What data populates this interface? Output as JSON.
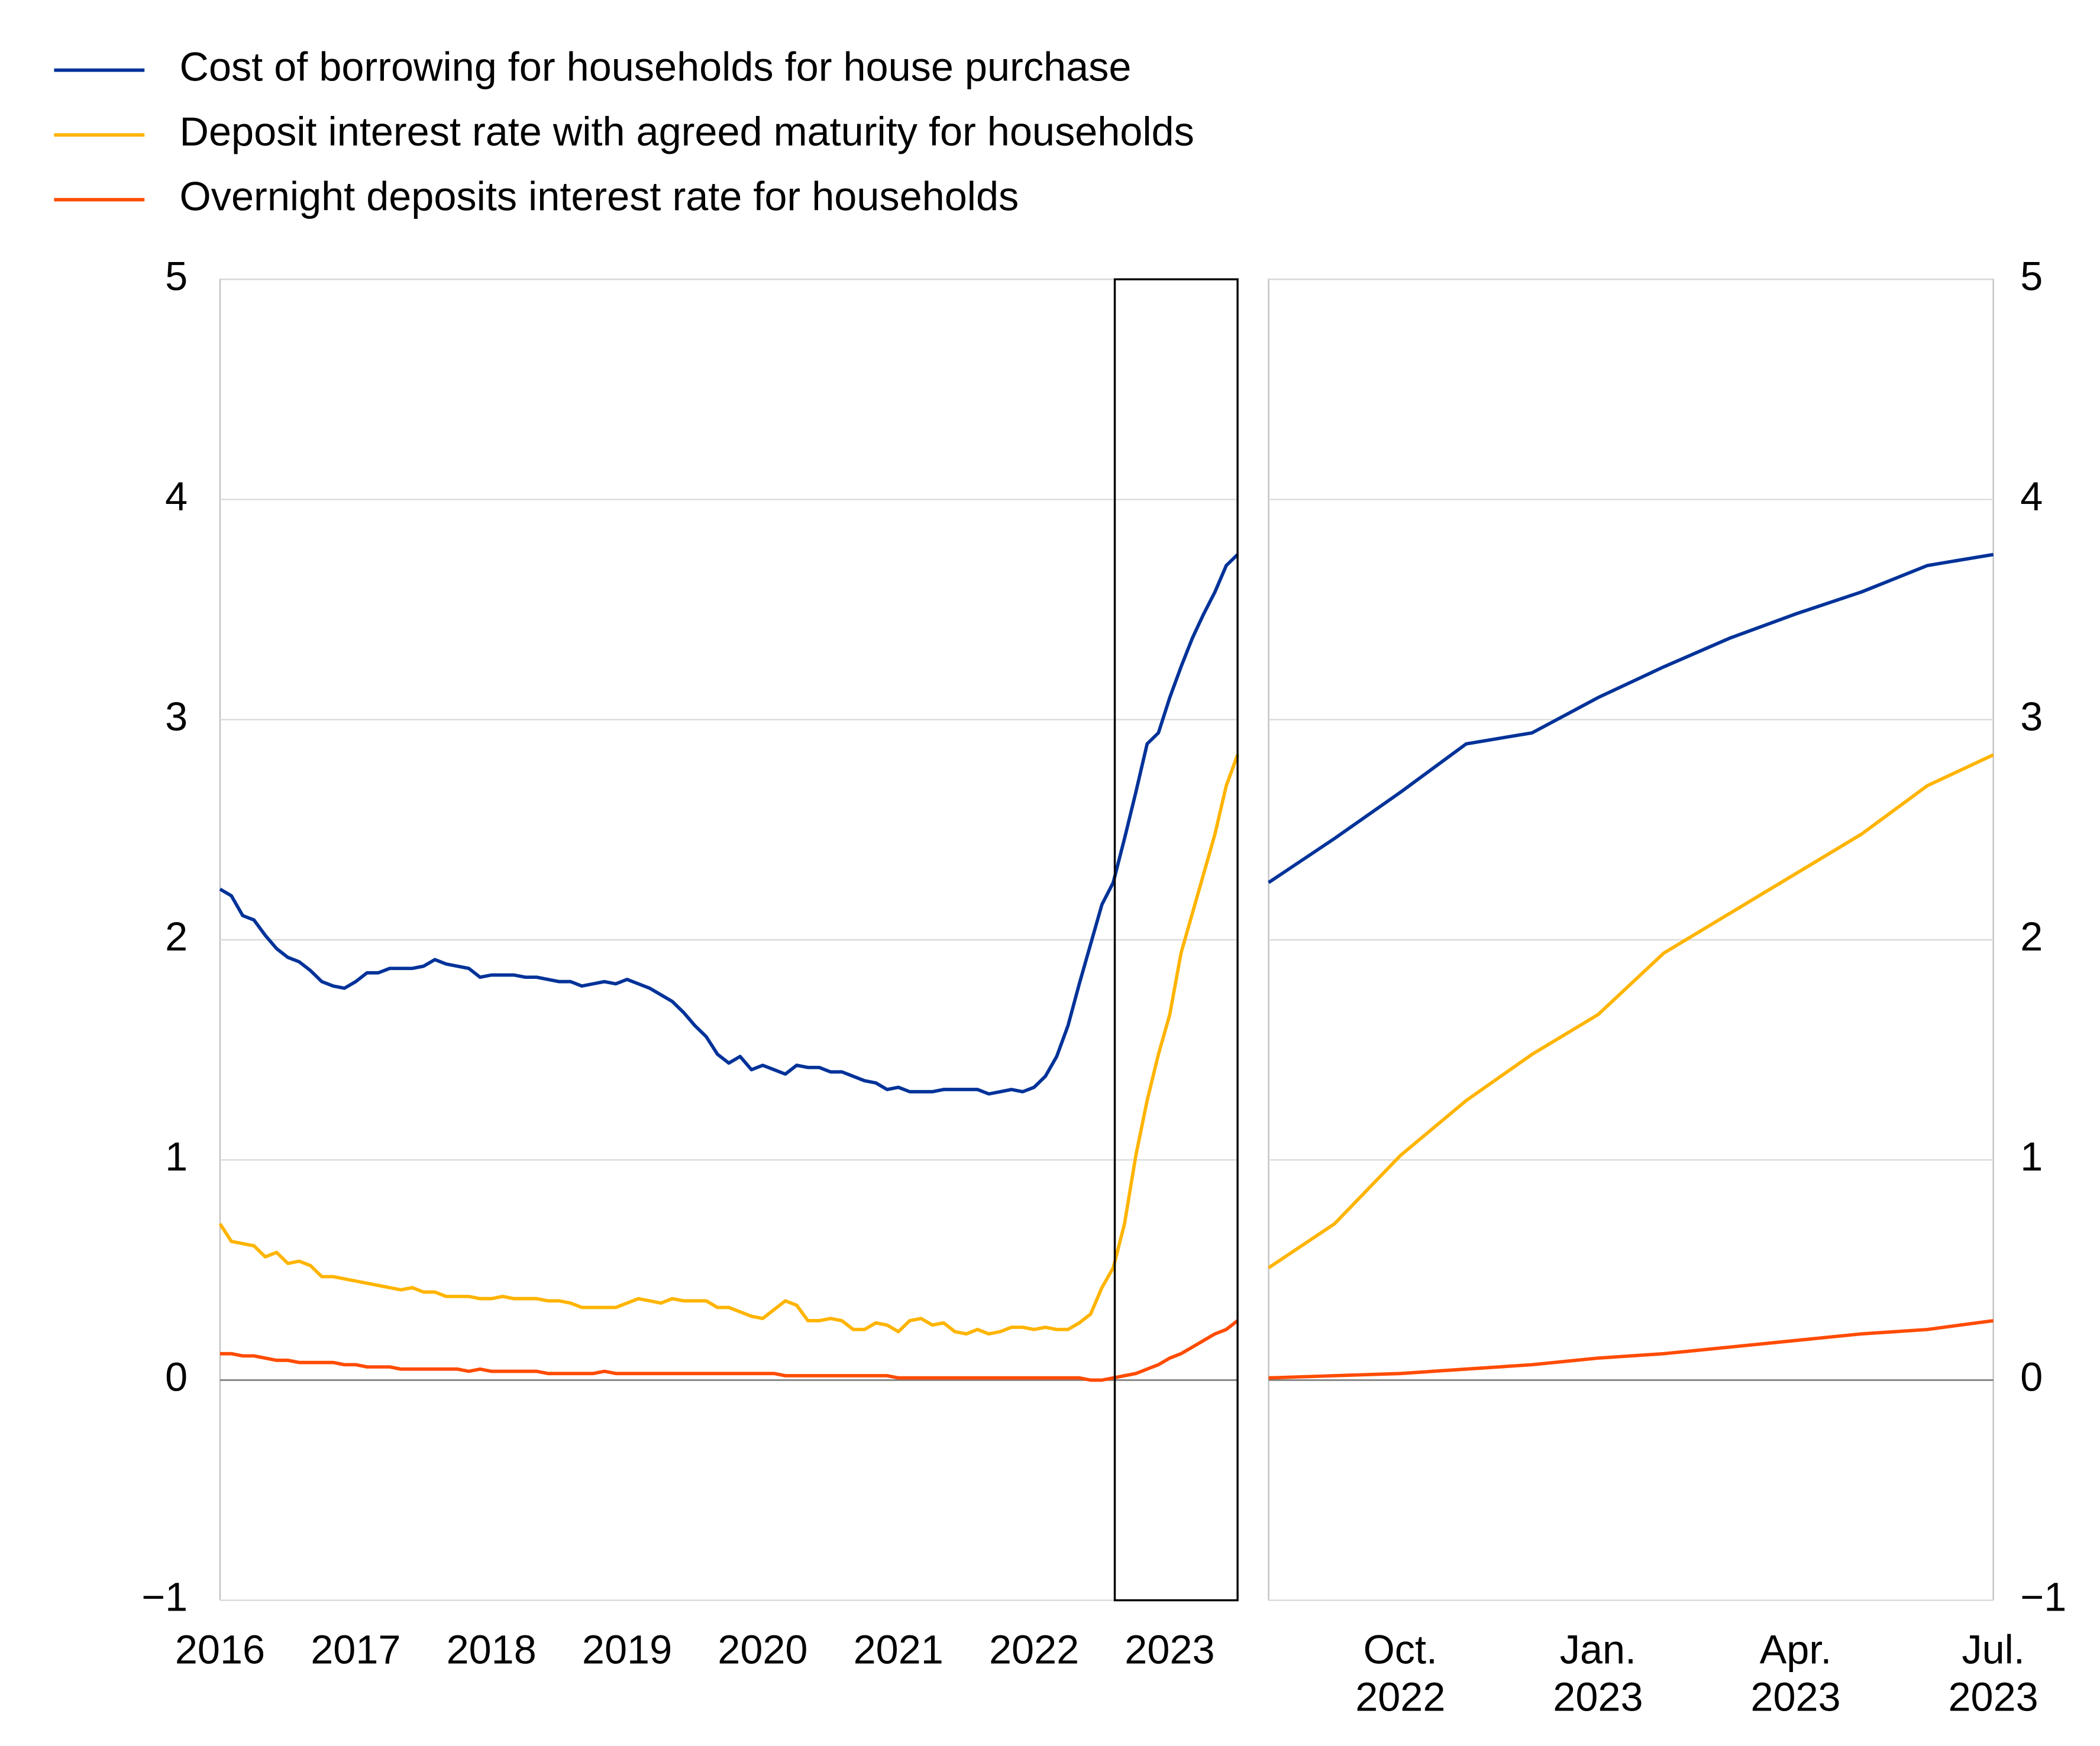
{
  "chart_data": [
    {
      "type": "line",
      "categories": [
        "2016",
        null,
        null,
        null,
        null,
        null,
        null,
        null,
        null,
        null,
        null,
        null,
        "2017",
        null,
        null,
        null,
        null,
        null,
        null,
        null,
        null,
        null,
        null,
        null,
        "2018",
        null,
        null,
        null,
        null,
        null,
        null,
        null,
        null,
        null,
        null,
        null,
        "2019",
        null,
        null,
        null,
        null,
        null,
        null,
        null,
        null,
        null,
        null,
        null,
        "2020",
        null,
        null,
        null,
        null,
        null,
        null,
        null,
        null,
        null,
        null,
        null,
        "2021",
        null,
        null,
        null,
        null,
        null,
        null,
        null,
        null,
        null,
        null,
        null,
        "2022",
        null,
        null,
        null,
        null,
        null,
        null,
        null,
        null,
        null,
        null,
        null,
        "2023",
        null,
        null,
        null,
        null,
        null,
        null
      ],
      "ylim": [
        -1,
        5
      ],
      "yticks": [
        {
          "value": -1,
          "label": "−1"
        },
        0,
        1,
        2,
        3,
        4,
        5
      ],
      "yaxis_side": "left",
      "grid": true,
      "series": [
        {
          "name": "Cost of borrowing for households for house purchase",
          "color": "#003299",
          "values": [
            2.23,
            2.2,
            2.11,
            2.09,
            2.02,
            1.96,
            1.92,
            1.9,
            1.86,
            1.81,
            1.79,
            1.78,
            1.81,
            1.85,
            1.85,
            1.87,
            1.87,
            1.87,
            1.88,
            1.91,
            1.89,
            1.88,
            1.87,
            1.83,
            1.84,
            1.84,
            1.84,
            1.83,
            1.83,
            1.82,
            1.81,
            1.81,
            1.79,
            1.8,
            1.81,
            1.8,
            1.82,
            1.8,
            1.78,
            1.75,
            1.72,
            1.67,
            1.61,
            1.56,
            1.48,
            1.44,
            1.47,
            1.41,
            1.43,
            1.41,
            1.39,
            1.43,
            1.42,
            1.42,
            1.4,
            1.4,
            1.38,
            1.36,
            1.35,
            1.32,
            1.33,
            1.31,
            1.31,
            1.31,
            1.32,
            1.32,
            1.32,
            1.32,
            1.3,
            1.31,
            1.32,
            1.31,
            1.33,
            1.38,
            1.47,
            1.61,
            1.8,
            1.98,
            2.16,
            2.26,
            2.46,
            2.67,
            2.89,
            2.94,
            3.1,
            3.24,
            3.37,
            3.48,
            3.58,
            3.7,
            3.75
          ]
        },
        {
          "name": "Deposit interest rate with agreed maturity for households",
          "color": "#ffb400",
          "values": [
            0.71,
            0.63,
            0.62,
            0.61,
            0.56,
            0.58,
            0.53,
            0.54,
            0.52,
            0.47,
            0.47,
            0.46,
            0.45,
            0.44,
            0.43,
            0.42,
            0.41,
            0.42,
            0.4,
            0.4,
            0.38,
            0.38,
            0.38,
            0.37,
            0.37,
            0.38,
            0.37,
            0.37,
            0.37,
            0.36,
            0.36,
            0.35,
            0.33,
            0.33,
            0.33,
            0.33,
            0.35,
            0.37,
            0.36,
            0.35,
            0.37,
            0.36,
            0.36,
            0.36,
            0.33,
            0.33,
            0.31,
            0.29,
            0.28,
            0.32,
            0.36,
            0.34,
            0.27,
            0.27,
            0.28,
            0.27,
            0.23,
            0.23,
            0.26,
            0.25,
            0.22,
            0.27,
            0.28,
            0.25,
            0.26,
            0.22,
            0.21,
            0.23,
            0.21,
            0.22,
            0.24,
            0.24,
            0.23,
            0.24,
            0.23,
            0.23,
            0.26,
            0.3,
            0.42,
            0.51,
            0.71,
            1.02,
            1.27,
            1.48,
            1.66,
            1.94,
            2.12,
            2.3,
            2.48,
            2.7,
            2.84
          ]
        },
        {
          "name": "Overnight deposits interest rate for households",
          "color": "#ff4b00",
          "values": [
            0.12,
            0.12,
            0.11,
            0.11,
            0.1,
            0.09,
            0.09,
            0.08,
            0.08,
            0.08,
            0.08,
            0.07,
            0.07,
            0.06,
            0.06,
            0.06,
            0.05,
            0.05,
            0.05,
            0.05,
            0.05,
            0.05,
            0.04,
            0.05,
            0.04,
            0.04,
            0.04,
            0.04,
            0.04,
            0.03,
            0.03,
            0.03,
            0.03,
            0.03,
            0.04,
            0.03,
            0.03,
            0.03,
            0.03,
            0.03,
            0.03,
            0.03,
            0.03,
            0.03,
            0.03,
            0.03,
            0.03,
            0.03,
            0.03,
            0.03,
            0.02,
            0.02,
            0.02,
            0.02,
            0.02,
            0.02,
            0.02,
            0.02,
            0.02,
            0.02,
            0.01,
            0.01,
            0.01,
            0.01,
            0.01,
            0.01,
            0.01,
            0.01,
            0.01,
            0.01,
            0.01,
            0.01,
            0.01,
            0.01,
            0.01,
            0.01,
            0.01,
            0.0,
            0.0,
            0.01,
            0.02,
            0.03,
            0.05,
            0.07,
            0.1,
            0.12,
            0.15,
            0.18,
            0.21,
            0.23,
            0.27
          ]
        }
      ]
    },
    {
      "type": "line",
      "categories": [
        null,
        null,
        "Oct. 2022",
        null,
        null,
        "Jan. 2023",
        null,
        null,
        "Apr. 2023",
        null,
        null,
        "Jul. 2023"
      ],
      "ylim": [
        -1,
        5
      ],
      "yticks": [
        {
          "value": -1,
          "label": "−1"
        },
        0,
        1,
        2,
        3,
        4,
        5
      ],
      "yaxis_side": "right",
      "grid": true,
      "series": [
        {
          "color": "#003299",
          "values": [
            2.26,
            2.46,
            2.67,
            2.89,
            2.94,
            3.1,
            3.24,
            3.37,
            3.48,
            3.58,
            3.7,
            3.75
          ]
        },
        {
          "color": "#ffb400",
          "values": [
            0.51,
            0.71,
            1.02,
            1.27,
            1.48,
            1.66,
            1.94,
            2.12,
            2.3,
            2.48,
            2.7,
            2.84
          ]
        },
        {
          "color": "#ff4b00",
          "values": [
            0.01,
            0.02,
            0.03,
            0.05,
            0.07,
            0.1,
            0.12,
            0.15,
            0.18,
            0.21,
            0.23,
            0.27
          ]
        }
      ]
    }
  ]
}
